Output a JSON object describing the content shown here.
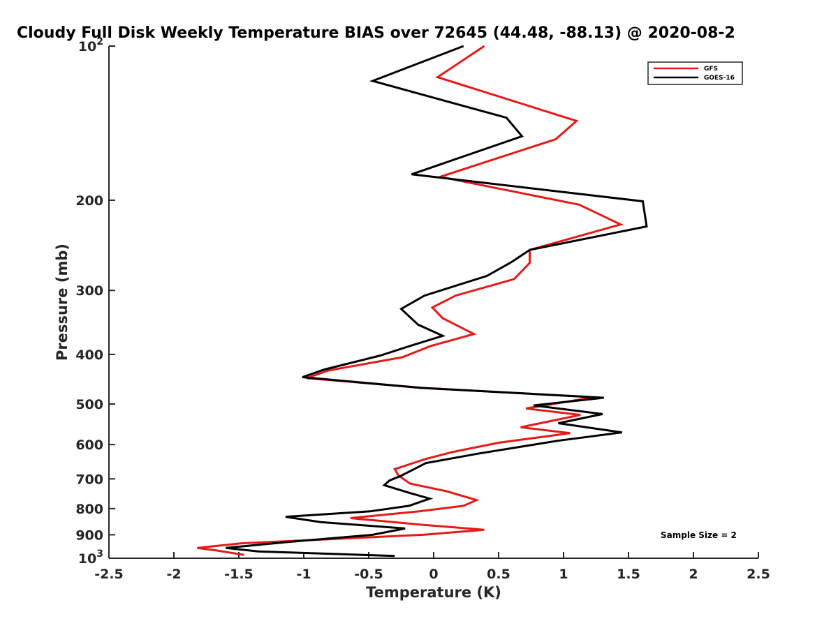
{
  "chart_data": {
    "type": "line",
    "title": "Cloudy Full Disk Weekly Temperature BIAS over 72645 (44.48, -88.13) @ 2020-08-2",
    "xlabel": "Temperature (K)",
    "ylabel": "Pressure (mb)",
    "xlim": [
      -2.5,
      2.5
    ],
    "ylim": [
      100,
      1000
    ],
    "y_scale": "log",
    "y_reversed": true,
    "grid": false,
    "x_ticks": [
      -2.5,
      -2,
      -1.5,
      -1,
      -0.5,
      0,
      0.5,
      1,
      1.5,
      2,
      2.5
    ],
    "x_tick_labels": [
      "-2.5",
      "-2",
      "-1.5",
      "-1",
      "-0.5",
      "0",
      "0.5",
      "1",
      "1.5",
      "2",
      "2.5"
    ],
    "y_ticks": [
      100,
      200,
      300,
      400,
      500,
      600,
      700,
      800,
      900,
      1000
    ],
    "y_tick_labels": [
      {
        "base": "10",
        "exp": "2"
      },
      {
        "base": "200",
        "exp": ""
      },
      {
        "base": "300",
        "exp": ""
      },
      {
        "base": "400",
        "exp": ""
      },
      {
        "base": "500",
        "exp": ""
      },
      {
        "base": "600",
        "exp": ""
      },
      {
        "base": "700",
        "exp": ""
      },
      {
        "base": "800",
        "exp": ""
      },
      {
        "base": "900",
        "exp": ""
      },
      {
        "base": "10",
        "exp": "3"
      }
    ],
    "legend_position": "top-right",
    "annotation": "Sample Size = 2",
    "series": [
      {
        "name": "GFS",
        "color": "#e41a1a",
        "points": [
          [
            0.39,
            100
          ],
          [
            0.03,
            115
          ],
          [
            1.1,
            140
          ],
          [
            0.94,
            152
          ],
          [
            0.05,
            180
          ],
          [
            1.12,
            204
          ],
          [
            1.44,
            223
          ],
          [
            0.74,
            250
          ],
          [
            0.74,
            265
          ],
          [
            0.62,
            285
          ],
          [
            0.17,
            307
          ],
          [
            -0.01,
            324
          ],
          [
            0.07,
            340
          ],
          [
            0.31,
            365
          ],
          [
            -0.02,
            385
          ],
          [
            -0.24,
            405
          ],
          [
            -0.81,
            430
          ],
          [
            -0.98,
            445
          ],
          [
            -0.08,
            465
          ],
          [
            1.23,
            485
          ],
          [
            0.71,
            510
          ],
          [
            1.13,
            525
          ],
          [
            0.67,
            555
          ],
          [
            1.05,
            570
          ],
          [
            0.5,
            595
          ],
          [
            0.15,
            620
          ],
          [
            -0.06,
            640
          ],
          [
            -0.3,
            670
          ],
          [
            -0.27,
            690
          ],
          [
            -0.18,
            715
          ],
          [
            0.1,
            740
          ],
          [
            0.33,
            770
          ],
          [
            0.23,
            790
          ],
          [
            -0.11,
            810
          ],
          [
            -0.64,
            835
          ],
          [
            -0.1,
            860
          ],
          [
            0.39,
            880
          ],
          [
            -0.08,
            900
          ],
          [
            -1.48,
            935
          ],
          [
            -1.82,
            955
          ],
          [
            -1.68,
            965
          ],
          [
            -1.46,
            985
          ]
        ]
      },
      {
        "name": "GOES-16",
        "color": "#000000",
        "points": [
          [
            0.23,
            100
          ],
          [
            -0.47,
            117
          ],
          [
            0.56,
            138
          ],
          [
            0.68,
            150
          ],
          [
            -0.17,
            178
          ],
          [
            1.61,
            201
          ],
          [
            1.64,
            225
          ],
          [
            0.74,
            250
          ],
          [
            0.6,
            264
          ],
          [
            0.41,
            281
          ],
          [
            -0.07,
            307
          ],
          [
            -0.25,
            326
          ],
          [
            -0.12,
            350
          ],
          [
            0.07,
            368
          ],
          [
            -0.18,
            385
          ],
          [
            -0.41,
            402
          ],
          [
            -0.84,
            428
          ],
          [
            -1.01,
            443
          ],
          [
            -0.1,
            465
          ],
          [
            1.31,
            486
          ],
          [
            0.77,
            503
          ],
          [
            1.3,
            523
          ],
          [
            0.96,
            545
          ],
          [
            1.45,
            568
          ],
          [
            0.95,
            590
          ],
          [
            0.34,
            625
          ],
          [
            -0.06,
            652
          ],
          [
            -0.25,
            690
          ],
          [
            -0.34,
            705
          ],
          [
            -0.38,
            720
          ],
          [
            -0.19,
            745
          ],
          [
            -0.03,
            765
          ],
          [
            -0.19,
            790
          ],
          [
            -0.49,
            810
          ],
          [
            -1.14,
            830
          ],
          [
            -0.87,
            850
          ],
          [
            -0.22,
            875
          ],
          [
            -0.47,
            900
          ],
          [
            -1.13,
            930
          ],
          [
            -1.6,
            955
          ],
          [
            -1.35,
            970
          ],
          [
            -0.3,
            990
          ]
        ]
      }
    ]
  }
}
